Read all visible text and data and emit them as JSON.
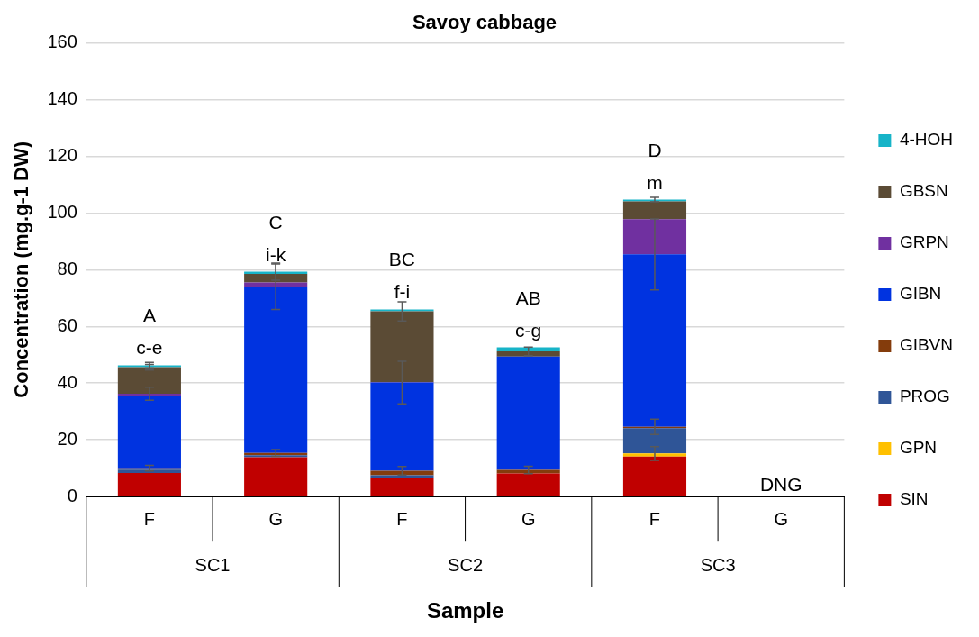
{
  "chart_data": {
    "type": "bar",
    "title": "Savoy cabbage",
    "xlabel": "Sample",
    "ylabel": "Concentration (mg.g-1 DW)",
    "categories": [
      "F",
      "G",
      "F",
      "G",
      "F",
      "G"
    ],
    "stacked": true,
    "ylim": [
      0,
      160
    ],
    "yticks": [
      0,
      20,
      40,
      60,
      80,
      100,
      120,
      140,
      160
    ],
    "grid": "y",
    "legend": "right",
    "series": [
      {
        "name": "SIN",
        "color": "#c00000",
        "values": [
          8.3,
          13.9,
          6.4,
          8.2,
          14.1,
          null
        ],
        "errors": [
          null,
          null,
          null,
          null,
          null,
          null
        ]
      },
      {
        "name": "GPN",
        "color": "#ffc000",
        "values": [
          0,
          0,
          0,
          0,
          1.1,
          null
        ],
        "errors": [
          null,
          null,
          null,
          null,
          2.4,
          null
        ]
      },
      {
        "name": "PROG",
        "color": "#2f5597",
        "values": [
          1.2,
          0.7,
          1.1,
          null,
          8.9,
          null
        ],
        "errors": [
          null,
          null,
          null,
          null,
          null,
          null
        ]
      },
      {
        "name": "GIBVN",
        "color": "#843c0c",
        "values": [
          0.5,
          0.8,
          1.6,
          1.2,
          0.5,
          null
        ],
        "errors": [
          1,
          1.2,
          1.5,
          1.3,
          2.7,
          null
        ]
      },
      {
        "name": "GIBN",
        "color": "#0033e0",
        "values": [
          25.3,
          58.6,
          31.1,
          40,
          60.8,
          null
        ],
        "errors": [
          null,
          8,
          7.5,
          null,
          12.5,
          null
        ]
      },
      {
        "name": "GRPN",
        "color": "#7030a0",
        "values": [
          1,
          1.5,
          0.2,
          0,
          12.4,
          null
        ],
        "errors": [
          2.3,
          null,
          null,
          null,
          null,
          null
        ]
      },
      {
        "name": "GBSN",
        "color": "#5b4b35",
        "values": [
          9.3,
          3,
          24.9,
          1.8,
          6.3,
          null
        ],
        "errors": [
          1,
          null,
          3.4,
          1.5,
          null,
          null
        ]
      },
      {
        "name": "4-HOH",
        "color": "#17b4c8",
        "values": [
          0.7,
          0.8,
          0.7,
          1.4,
          0.6,
          null
        ],
        "errors": [
          1,
          3,
          null,
          null,
          0.8,
          null
        ]
      }
    ],
    "annotations": [
      "SC1",
      "SC2",
      "SC3",
      "A",
      "c-e",
      "C",
      "i-k",
      "BC",
      "f-i",
      "AB",
      "c-g",
      "D",
      "m",
      "DNG"
    ]
  }
}
